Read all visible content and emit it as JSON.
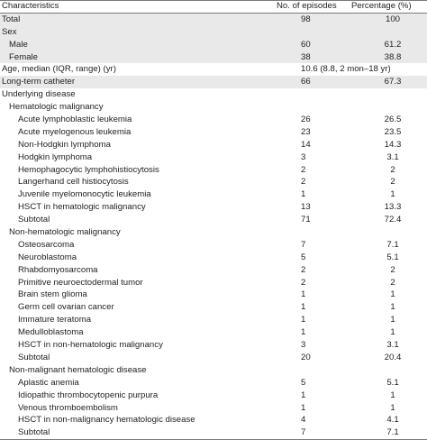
{
  "header": {
    "characteristics": "Characteristics",
    "episodes": "No. of episodes",
    "percentage": "Percentage (%)"
  },
  "rows": [
    {
      "label": "Total",
      "n": "98",
      "pct": "100",
      "level": 0,
      "shaded": true
    },
    {
      "label": "Sex",
      "n": "",
      "pct": "",
      "level": 0,
      "shaded": true
    },
    {
      "label": "Male",
      "n": "60",
      "pct": "61.2",
      "level": 1,
      "shaded": true
    },
    {
      "label": "Female",
      "n": "38",
      "pct": "38.8",
      "level": 1,
      "shaded": true
    },
    {
      "label": "Age, median (IQR, range) (yr)",
      "span": "10.6 (8.8, 2 mon–18 yr)",
      "level": 0,
      "shaded": false
    },
    {
      "label": "Long-term catheter",
      "n": "66",
      "pct": "67.3",
      "level": 0,
      "shaded": true
    },
    {
      "label": "Underlying disease",
      "n": "",
      "pct": "",
      "level": 0,
      "shaded": false
    },
    {
      "label": "Hematologic malignancy",
      "n": "",
      "pct": "",
      "level": 1,
      "shaded": false
    },
    {
      "label": "Acute lymphoblastic leukemia",
      "n": "26",
      "pct": "26.5",
      "level": 2,
      "shaded": false
    },
    {
      "label": "Acute myelogenous leukemia",
      "n": "23",
      "pct": "23.5",
      "level": 2,
      "shaded": false
    },
    {
      "label": "Non-Hodgkin lymphoma",
      "n": "14",
      "pct": "14.3",
      "level": 2,
      "shaded": false
    },
    {
      "label": "Hodgkin lymphoma",
      "n": "3",
      "pct": "3.1",
      "level": 2,
      "shaded": false
    },
    {
      "label": "Hemophagocytic lymphohistiocytosis",
      "n": "2",
      "pct": "2",
      "level": 2,
      "shaded": false
    },
    {
      "label": "Langerhand cell histiocytosis",
      "n": "2",
      "pct": "2",
      "level": 2,
      "shaded": false
    },
    {
      "label": "Juvenile myelomonocytic leukemia",
      "n": "1",
      "pct": "1",
      "level": 2,
      "shaded": false
    },
    {
      "label": "HSCT in hematologic malignancy",
      "n": "13",
      "pct": "13.3",
      "level": 2,
      "shaded": false
    },
    {
      "label": "Subtotal",
      "n": "71",
      "pct": "72.4",
      "level": 2,
      "shaded": false
    },
    {
      "label": "Non-hematologic malignancy",
      "n": "",
      "pct": "",
      "level": 1,
      "shaded": false
    },
    {
      "label": "Osteosarcoma",
      "n": "7",
      "pct": "7.1",
      "level": 2,
      "shaded": false
    },
    {
      "label": "Neuroblastoma",
      "n": "5",
      "pct": "5.1",
      "level": 2,
      "shaded": false
    },
    {
      "label": "Rhabdomyosarcoma",
      "n": "2",
      "pct": "2",
      "level": 2,
      "shaded": false
    },
    {
      "label": "Primitive neuroectodermal tumor",
      "n": "2",
      "pct": "2",
      "level": 2,
      "shaded": false
    },
    {
      "label": "Brain stem glioma",
      "n": "1",
      "pct": "1",
      "level": 2,
      "shaded": false
    },
    {
      "label": "Germ cell ovarian cancer",
      "n": "1",
      "pct": "1",
      "level": 2,
      "shaded": false
    },
    {
      "label": "Immature teratoma",
      "n": "1",
      "pct": "1",
      "level": 2,
      "shaded": false
    },
    {
      "label": "Medulloblastoma",
      "n": "1",
      "pct": "1",
      "level": 2,
      "shaded": false
    },
    {
      "label": "HSCT in non-hematologic malignancy",
      "n": "3",
      "pct": "3.1",
      "level": 2,
      "shaded": false
    },
    {
      "label": "Subtotal",
      "n": "20",
      "pct": "20.4",
      "level": 2,
      "shaded": false
    },
    {
      "label": "Non-malignant hematologic disease",
      "n": "",
      "pct": "",
      "level": 1,
      "shaded": false
    },
    {
      "label": "Aplastic anemia",
      "n": "5",
      "pct": "5.1",
      "level": 2,
      "shaded": false
    },
    {
      "label": "Idiopathic thrombocytopenic purpura",
      "n": "1",
      "pct": "1",
      "level": 2,
      "shaded": false
    },
    {
      "label": "Venous thromboembolism",
      "n": "1",
      "pct": "1",
      "level": 2,
      "shaded": false
    },
    {
      "label": "HSCT in non-malignancy hematologic disease",
      "n": "4",
      "pct": "4.1",
      "level": 2,
      "shaded": false
    },
    {
      "label": "Subtotal",
      "n": "7",
      "pct": "7.1",
      "level": 2,
      "shaded": false
    }
  ]
}
